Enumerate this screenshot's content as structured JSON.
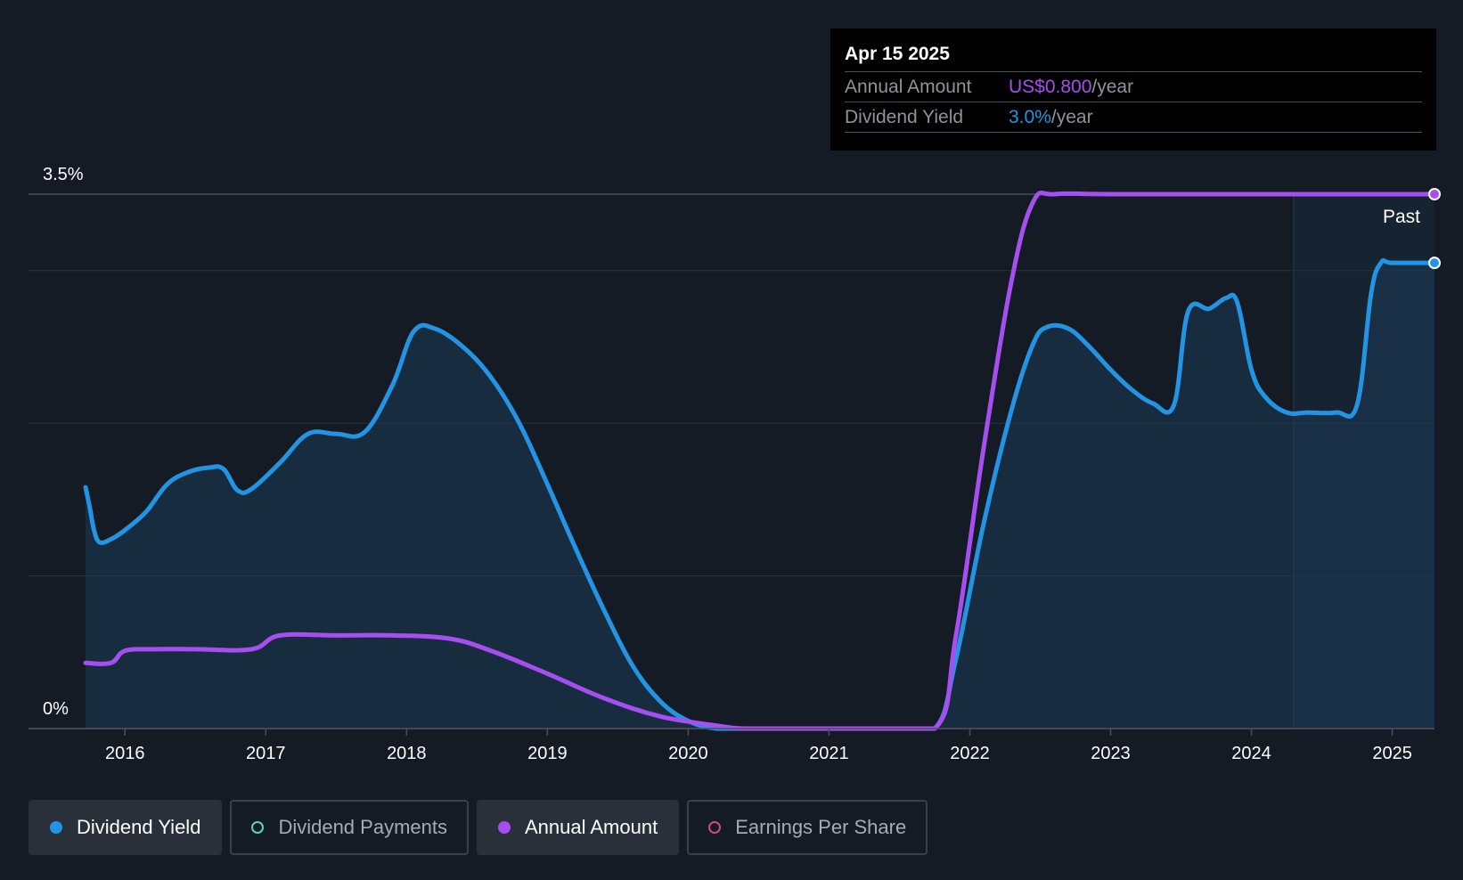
{
  "tooltip": {
    "date": "Apr 15 2025",
    "rows": [
      {
        "label": "Annual Amount",
        "value": "US$0.800",
        "unit": "/year",
        "color": "#a64ff0"
      },
      {
        "label": "Dividend Yield",
        "value": "3.0%",
        "unit": "/year",
        "color": "#2394e3"
      }
    ]
  },
  "legend": [
    {
      "label": "Dividend Yield",
      "color": "#2394e3",
      "active": true
    },
    {
      "label": "Dividend Payments",
      "color": "#5fcfc1",
      "active": false
    },
    {
      "label": "Annual Amount",
      "color": "#a64ff0",
      "active": true
    },
    {
      "label": "Earnings Per Share",
      "color": "#d2497a",
      "active": false
    }
  ],
  "chart_data": {
    "type": "area",
    "y_top_label": "3.5%",
    "y_bottom_label": "0%",
    "ylim": [
      0,
      3.5
    ],
    "xlim": [
      2015.72,
      2025.3
    ],
    "x_ticks": [
      "2016",
      "2017",
      "2018",
      "2019",
      "2020",
      "2021",
      "2022",
      "2023",
      "2024",
      "2025"
    ],
    "past_label": "Past",
    "past_start": 2024.3,
    "series": [
      {
        "name": "Dividend Yield",
        "color": "#2394e3",
        "points": [
          [
            2015.72,
            1.58
          ],
          [
            2015.75,
            1.45
          ],
          [
            2015.78,
            1.3
          ],
          [
            2015.82,
            1.22
          ],
          [
            2015.9,
            1.24
          ],
          [
            2016.0,
            1.3
          ],
          [
            2016.15,
            1.42
          ],
          [
            2016.3,
            1.6
          ],
          [
            2016.45,
            1.68
          ],
          [
            2016.6,
            1.71
          ],
          [
            2016.7,
            1.7
          ],
          [
            2016.8,
            1.56
          ],
          [
            2016.9,
            1.57
          ],
          [
            2017.1,
            1.74
          ],
          [
            2017.3,
            1.93
          ],
          [
            2017.5,
            1.93
          ],
          [
            2017.7,
            1.94
          ],
          [
            2017.9,
            2.25
          ],
          [
            2018.05,
            2.6
          ],
          [
            2018.2,
            2.62
          ],
          [
            2018.4,
            2.5
          ],
          [
            2018.6,
            2.3
          ],
          [
            2018.8,
            2.0
          ],
          [
            2019.0,
            1.6
          ],
          [
            2019.2,
            1.18
          ],
          [
            2019.4,
            0.78
          ],
          [
            2019.6,
            0.42
          ],
          [
            2019.8,
            0.18
          ],
          [
            2020.0,
            0.05
          ],
          [
            2020.2,
            0.0
          ],
          [
            2020.4,
            0.0
          ],
          [
            2020.6,
            0.0
          ],
          [
            2020.8,
            0.0
          ],
          [
            2021.0,
            0.0
          ],
          [
            2021.4,
            0.0
          ],
          [
            2021.75,
            0.0
          ],
          [
            2021.9,
            0.45
          ],
          [
            2022.1,
            1.35
          ],
          [
            2022.3,
            2.1
          ],
          [
            2022.45,
            2.52
          ],
          [
            2022.55,
            2.63
          ],
          [
            2022.7,
            2.62
          ],
          [
            2022.85,
            2.5
          ],
          [
            2023.0,
            2.35
          ],
          [
            2023.15,
            2.22
          ],
          [
            2023.3,
            2.13
          ],
          [
            2023.45,
            2.12
          ],
          [
            2023.55,
            2.73
          ],
          [
            2023.7,
            2.75
          ],
          [
            2023.82,
            2.82
          ],
          [
            2023.9,
            2.79
          ],
          [
            2024.0,
            2.35
          ],
          [
            2024.1,
            2.17
          ],
          [
            2024.25,
            2.07
          ],
          [
            2024.4,
            2.07
          ],
          [
            2024.6,
            2.07
          ],
          [
            2024.75,
            2.12
          ],
          [
            2024.85,
            2.85
          ],
          [
            2024.92,
            3.05
          ],
          [
            2025.0,
            3.05
          ],
          [
            2025.3,
            3.05
          ]
        ]
      },
      {
        "name": "Annual Amount",
        "color": "#a64ff0",
        "points": [
          [
            2015.72,
            0.43
          ],
          [
            2015.9,
            0.43
          ],
          [
            2016.0,
            0.51
          ],
          [
            2016.2,
            0.52
          ],
          [
            2016.5,
            0.52
          ],
          [
            2016.9,
            0.52
          ],
          [
            2017.1,
            0.61
          ],
          [
            2017.5,
            0.61
          ],
          [
            2017.9,
            0.61
          ],
          [
            2018.3,
            0.59
          ],
          [
            2018.6,
            0.51
          ],
          [
            2019.0,
            0.36
          ],
          [
            2019.4,
            0.2
          ],
          [
            2019.8,
            0.08
          ],
          [
            2020.2,
            0.02
          ],
          [
            2020.4,
            0.0
          ],
          [
            2020.8,
            0.0
          ],
          [
            2021.2,
            0.0
          ],
          [
            2021.75,
            0.0
          ],
          [
            2021.9,
            0.6
          ],
          [
            2022.1,
            1.85
          ],
          [
            2022.3,
            2.95
          ],
          [
            2022.45,
            3.45
          ],
          [
            2022.6,
            3.5
          ],
          [
            2023.0,
            3.5
          ],
          [
            2024.0,
            3.5
          ],
          [
            2025.3,
            3.5
          ]
        ]
      }
    ]
  }
}
